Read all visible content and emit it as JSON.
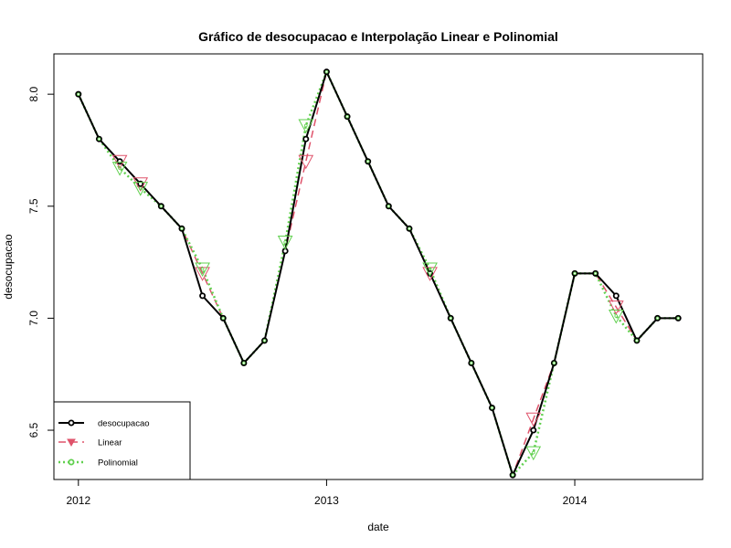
{
  "chart_data": {
    "type": "line",
    "title": "Gráfico de desocupacao e Interpolação Linear e Polinomial",
    "xlabel": "date",
    "ylabel": "desocupacao",
    "x_ticks": [
      "2012",
      "2013",
      "2014"
    ],
    "y_ticks": [
      "6.5",
      "7.0",
      "7.5",
      "8.0"
    ],
    "xlim": [
      "2012-01",
      "2014-06"
    ],
    "ylim": [
      6.28,
      8.18
    ],
    "grid": false,
    "legend_position": "bottom-left",
    "x": [
      "2012-01",
      "2012-02",
      "2012-03",
      "2012-04",
      "2012-05",
      "2012-06",
      "2012-07",
      "2012-08",
      "2012-09",
      "2012-10",
      "2012-11",
      "2012-12",
      "2013-01",
      "2013-02",
      "2013-03",
      "2013-04",
      "2013-05",
      "2013-06",
      "2013-07",
      "2013-08",
      "2013-09",
      "2013-10",
      "2013-11",
      "2013-12",
      "2014-01",
      "2014-02",
      "2014-03",
      "2014-04",
      "2014-05",
      "2014-06"
    ],
    "series": [
      {
        "name": "desocupacao",
        "color": "#000000",
        "line_style": "solid",
        "marker": "circle",
        "values": [
          8.0,
          7.8,
          7.7,
          7.6,
          7.5,
          7.4,
          7.1,
          7.0,
          6.8,
          6.9,
          7.3,
          7.8,
          8.1,
          7.9,
          7.7,
          7.5,
          7.4,
          7.2,
          7.0,
          6.8,
          6.6,
          6.3,
          6.5,
          6.8,
          7.2,
          7.2,
          7.1,
          6.9,
          7.0,
          7.0
        ]
      },
      {
        "name": "Linear",
        "color": "#df536b",
        "line_style": "dashed",
        "marker": "triangle-down",
        "values": [
          8.0,
          7.8,
          7.7,
          7.6,
          7.5,
          7.4,
          7.2,
          7.0,
          6.8,
          6.9,
          7.3,
          7.7,
          8.1,
          7.9,
          7.7,
          7.5,
          7.4,
          7.2,
          7.0,
          6.8,
          6.6,
          6.3,
          6.55,
          6.8,
          7.2,
          7.2,
          7.05,
          6.9,
          7.0,
          7.0
        ]
      },
      {
        "name": "Polinomial",
        "color": "#61d04f",
        "line_style": "dotted",
        "marker": "circle",
        "values": [
          8.0,
          7.8,
          7.67,
          7.58,
          7.5,
          7.4,
          7.22,
          7.0,
          6.8,
          6.9,
          7.34,
          7.86,
          8.1,
          7.9,
          7.7,
          7.5,
          7.4,
          7.22,
          7.0,
          6.8,
          6.6,
          6.3,
          6.4,
          6.8,
          7.2,
          7.2,
          7.01,
          6.9,
          7.0,
          7.0
        ]
      }
    ],
    "imputed_markers": {
      "Linear": [
        2,
        3,
        6,
        11,
        17,
        22,
        26
      ],
      "Polinomial": [
        2,
        3,
        6,
        10,
        11,
        17,
        22,
        26
      ]
    }
  }
}
